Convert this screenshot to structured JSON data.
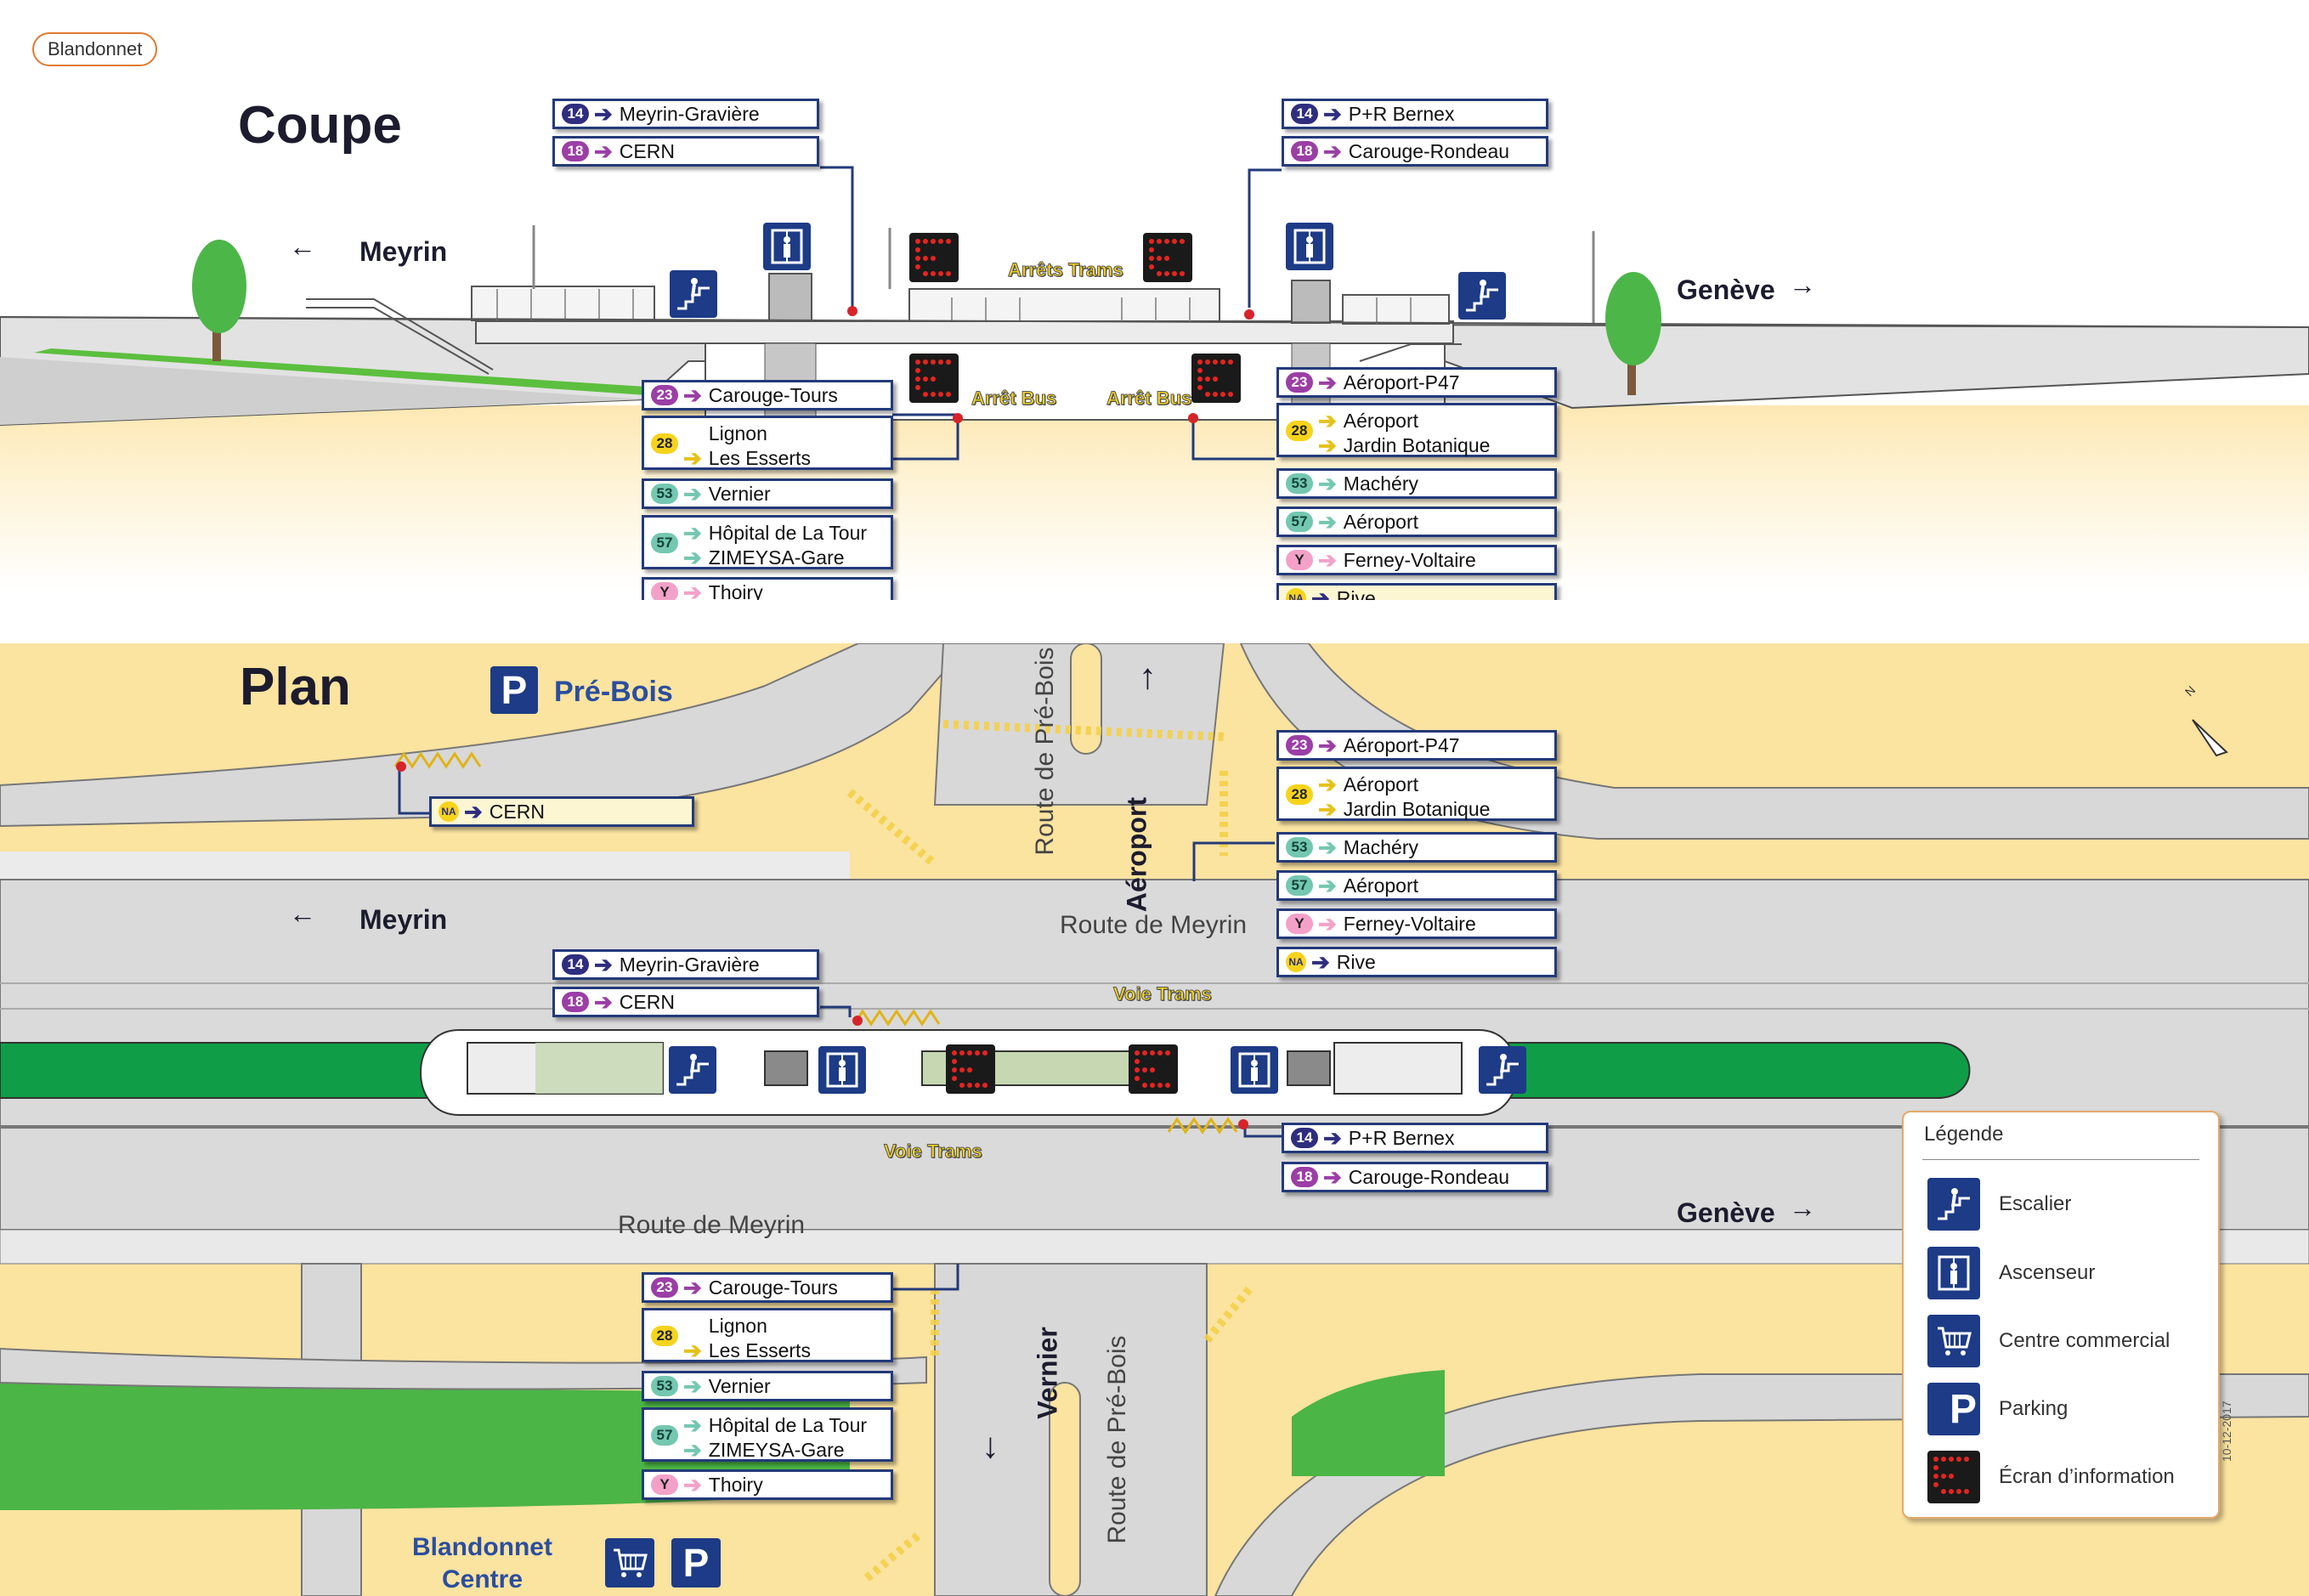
{
  "station_name": "Blandonnet",
  "date": "10-12-2017",
  "colors": {
    "line14": "#2f2d7e",
    "line18": "#9b3ea6",
    "line23": "#9b3ea6",
    "line28": "#f6d41c",
    "line53": "#74c7b0",
    "line57": "#74c7b0",
    "lineY": "#f3a1c8",
    "lineNA": "#f6d41c",
    "frame": "#233a7a"
  },
  "coupe": {
    "title": "Coupe",
    "dir_left": "Meyrin",
    "dir_right": "Genève",
    "arrow_left": "←",
    "arrow_right": "→",
    "label_trams": "Arrêts Trams",
    "label_bus_left": "Arrêt Bus",
    "label_bus_right": "Arrêt Bus",
    "tram_left": [
      {
        "line": "14",
        "dest": "Meyrin-Gravière"
      },
      {
        "line": "18",
        "dest": "CERN"
      }
    ],
    "tram_right": [
      {
        "line": "14",
        "dest": "P+R Bernex"
      },
      {
        "line": "18",
        "dest": "Carouge-Rondeau"
      }
    ],
    "bus_left": [
      {
        "line": "23",
        "dest": "Carouge-Tours"
      },
      {
        "line": "28",
        "dest": "Lignon",
        "dest2": "Les Esserts"
      },
      {
        "line": "53",
        "dest": "Vernier"
      },
      {
        "line": "57",
        "dest": "Hôpital de La Tour",
        "dest2": "ZIMEYSA-Gare"
      },
      {
        "line": "Y",
        "dest": "Thoiry"
      }
    ],
    "bus_right": [
      {
        "line": "23",
        "dest": "Aéroport-P47"
      },
      {
        "line": "28",
        "dest": "Aéroport",
        "dest2": "Jardin Botanique"
      },
      {
        "line": "53",
        "dest": "Machéry"
      },
      {
        "line": "57",
        "dest": "Aéroport"
      },
      {
        "line": "Y",
        "dest": "Ferney-Voltaire"
      },
      {
        "line": "NA",
        "dest": "Rive"
      }
    ]
  },
  "plan": {
    "title": "Plan",
    "parking_pre_bois": "Pré-Bois",
    "parking_letter": "P",
    "north": "N",
    "dir_left": "Meyrin",
    "dir_right": "Genève",
    "dir_up": "Aéroport",
    "dir_down": "Vernier",
    "arrow_left": "←",
    "arrow_right": "→",
    "arrow_up": "↑",
    "arrow_down": "↓",
    "road_meyrin_top": "Route de Meyrin",
    "road_meyrin_bottom": "Route de Meyrin",
    "road_pre_bois_top": "Route de Pré-Bois",
    "road_pre_bois_bottom": "Route de Pré-Bois",
    "voie_trams_top": "Voie Trams",
    "voie_trams_bottom": "Voie Trams",
    "centre_line1": "Blandonnet",
    "centre_line2": "Centre",
    "na_cern": {
      "line": "NA",
      "dest": "CERN"
    },
    "tram_top": [
      {
        "line": "14",
        "dest": "Meyrin-Gravière"
      },
      {
        "line": "18",
        "dest": "CERN"
      }
    ],
    "tram_bottom": [
      {
        "line": "14",
        "dest": "P+R Bernex"
      },
      {
        "line": "18",
        "dest": "Carouge-Rondeau"
      }
    ],
    "bus_right": [
      {
        "line": "23",
        "dest": "Aéroport-P47"
      },
      {
        "line": "28",
        "dest": "Aéroport",
        "dest2": "Jardin Botanique"
      },
      {
        "line": "53",
        "dest": "Machéry"
      },
      {
        "line": "57",
        "dest": "Aéroport"
      },
      {
        "line": "Y",
        "dest": "Ferney-Voltaire"
      },
      {
        "line": "NA",
        "dest": "Rive"
      }
    ],
    "bus_bottom": [
      {
        "line": "23",
        "dest": "Carouge-Tours"
      },
      {
        "line": "28",
        "dest": "Lignon",
        "dest2": "Les Esserts"
      },
      {
        "line": "53",
        "dest": "Vernier"
      },
      {
        "line": "57",
        "dest": "Hôpital de La Tour",
        "dest2": "ZIMEYSA-Gare"
      },
      {
        "line": "Y",
        "dest": "Thoiry"
      }
    ]
  },
  "legend": {
    "title": "Légende",
    "items": [
      {
        "icon": "stairs-icon",
        "label": "Escalier"
      },
      {
        "icon": "elevator-icon",
        "label": "Ascenseur"
      },
      {
        "icon": "shopping-cart-icon",
        "label": "Centre commercial"
      },
      {
        "icon": "parking-icon",
        "label": "Parking"
      },
      {
        "icon": "info-screen-icon",
        "label": "Écran d’information"
      }
    ]
  }
}
